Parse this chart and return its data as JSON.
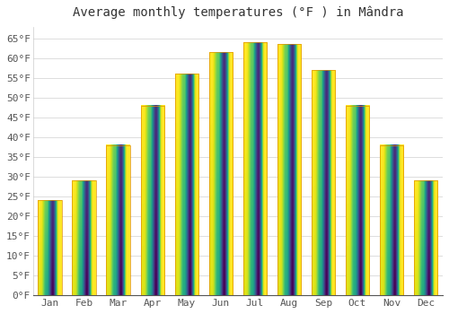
{
  "title": "Average monthly temperatures (°F ) in Mândra",
  "months": [
    "Jan",
    "Feb",
    "Mar",
    "Apr",
    "May",
    "Jun",
    "Jul",
    "Aug",
    "Sep",
    "Oct",
    "Nov",
    "Dec"
  ],
  "values": [
    24.0,
    29.0,
    38.0,
    48.0,
    56.0,
    61.5,
    64.0,
    63.5,
    57.0,
    48.0,
    38.0,
    29.0
  ],
  "bar_color_top": "#FFB300",
  "bar_color_bottom": "#FFA000",
  "bar_edge_color": "#E09000",
  "background_color": "#ffffff",
  "plot_background": "#ffffff",
  "grid_color": "#dddddd",
  "ytick_min": 0,
  "ytick_max": 65,
  "ytick_step": 5,
  "title_fontsize": 10,
  "tick_fontsize": 8,
  "font_family": "monospace",
  "ylim_max": 68
}
